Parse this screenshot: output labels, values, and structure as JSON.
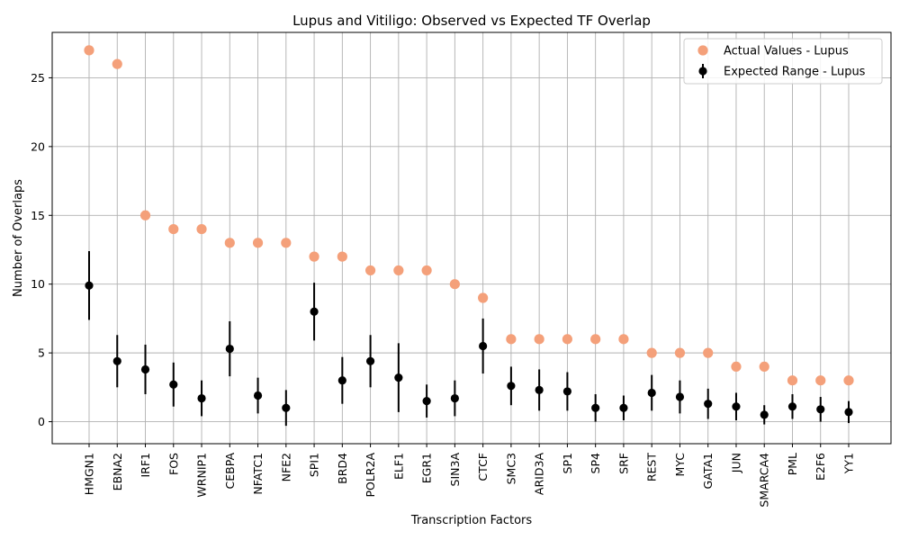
{
  "chart_data": {
    "type": "scatter",
    "title": "Lupus and Vitiligo: Observed vs Expected TF Overlap",
    "xlabel": "Transcription Factors",
    "ylabel": "Number of Overlaps",
    "ylim": [
      -1.6,
      28.3
    ],
    "yticks": [
      0,
      5,
      10,
      15,
      20,
      25
    ],
    "grid": true,
    "legend_position": "top-right",
    "categories": [
      "HMGN1",
      "EBNA2",
      "IRF1",
      "FOS",
      "WRNIP1",
      "CEBPA",
      "NFATC1",
      "NFE2",
      "SPI1",
      "BRD4",
      "POLR2A",
      "ELF1",
      "EGR1",
      "SIN3A",
      "CTCF",
      "SMC3",
      "ARID3A",
      "SP1",
      "SP4",
      "SRF",
      "REST",
      "MYC",
      "GATA1",
      "JUN",
      "SMARCA4",
      "PML",
      "E2F6",
      "YY1"
    ],
    "series": [
      {
        "name": "Actual Values - Lupus",
        "color": "#f4a07a",
        "marker": "circle",
        "values": [
          27,
          26,
          15,
          14,
          14,
          13,
          13,
          13,
          12,
          12,
          11,
          11,
          11,
          10,
          9,
          6,
          6,
          6,
          6,
          6,
          5,
          5,
          5,
          4,
          4,
          3,
          3,
          3
        ]
      },
      {
        "name": "Expected Range - Lupus",
        "color": "#000000",
        "marker": "errorbar",
        "values": [
          9.9,
          4.4,
          3.8,
          2.7,
          1.7,
          5.3,
          1.9,
          1.0,
          8.0,
          3.0,
          4.4,
          3.2,
          1.5,
          1.7,
          5.5,
          2.6,
          2.3,
          2.2,
          1.0,
          1.0,
          2.1,
          1.8,
          1.3,
          1.1,
          0.5,
          1.1,
          0.9,
          0.7
        ],
        "errors": [
          2.5,
          1.9,
          1.8,
          1.6,
          1.3,
          2.0,
          1.3,
          1.3,
          2.1,
          1.7,
          1.9,
          2.5,
          1.2,
          1.3,
          2.0,
          1.4,
          1.5,
          1.4,
          1.0,
          0.9,
          1.3,
          1.2,
          1.1,
          1.0,
          0.7,
          0.9,
          0.9,
          0.8
        ]
      }
    ]
  }
}
